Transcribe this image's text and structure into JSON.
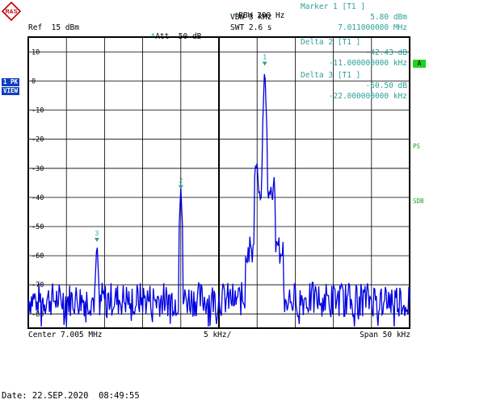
{
  "header": {
    "logo_text": "R&S",
    "rbw": "RBW 200 Hz",
    "vbw": "VBW 3 kHz",
    "swt": "SWT 2.6 s",
    "ref": "Ref  15 dBm",
    "att": "Att  50 dB",
    "star_mark": "*"
  },
  "markers_panel": {
    "marker1_label": "Marker 1 [T1 ]",
    "marker1_level": "5.80 dBm",
    "marker1_freq": "7.011000000 MHz",
    "delta2_label": "Delta 2 [T1 ]",
    "delta2_level": "-42.43 dB",
    "delta2_freq": "-11.000000000 kHz",
    "delta3_label": "Delta 3 [T1 ]",
    "delta3_level": "-60.50 dB",
    "delta3_freq": "-22.000000000 kHz"
  },
  "side": {
    "trace_badge": "1 PK",
    "view_badge": "VIEW",
    "a_badge": "A",
    "ps_label": "PS",
    "sdb_label": "SDB"
  },
  "footer": {
    "center": "Center 7.005 MHz",
    "per_div": "5 kHz/",
    "span": "Span 50 kHz",
    "date": "Date: 22.SEP.2020  08:49:55"
  },
  "chart_data": {
    "type": "line",
    "xlabel": "",
    "ylabel": "",
    "x_range_khz": [
      6980,
      7030
    ],
    "ylim": [
      -85,
      15
    ],
    "y_ticks": [
      "10",
      "0",
      "-10",
      "-20",
      "-30",
      "-40",
      "-50",
      "-60",
      "-70",
      "-80"
    ],
    "grid": true,
    "trace_color": "#0000e0",
    "marker_color": "#2aa198",
    "peaks": [
      {
        "label": "1",
        "freq_khz": 7011.0,
        "level_dbm": 5.8
      },
      {
        "label": "2",
        "freq_khz": 7000.0,
        "level_dbm": -36.6
      },
      {
        "label": "3",
        "freq_khz": 6989.0,
        "level_dbm": -54.7
      }
    ],
    "noise_floor_dbm": -75
  }
}
